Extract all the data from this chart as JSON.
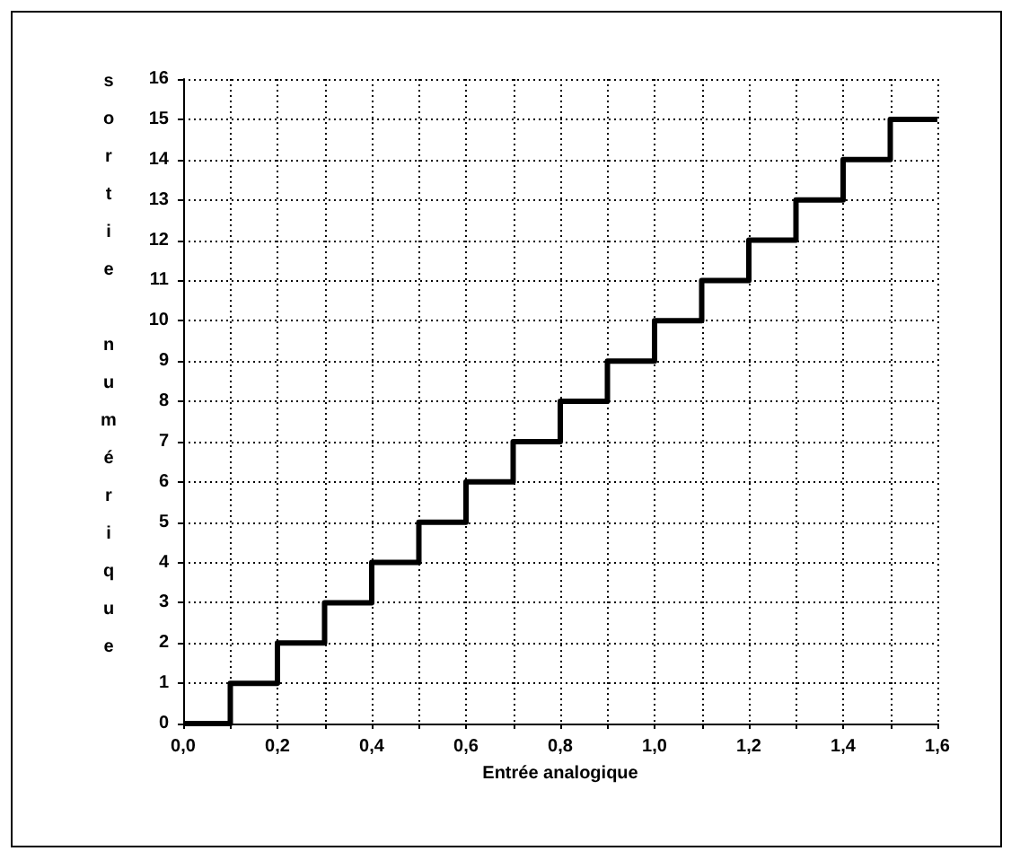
{
  "chart_data": {
    "type": "step",
    "xlabel": "Entrée analogique",
    "ylabel": "sortie numérique",
    "x": [
      0,
      0.1,
      0.2,
      0.3,
      0.4,
      0.5,
      0.6,
      0.7,
      0.8,
      0.9,
      1.0,
      1.1,
      1.2,
      1.3,
      1.4,
      1.5,
      1.6
    ],
    "values": [
      0,
      1,
      2,
      3,
      4,
      5,
      6,
      7,
      8,
      9,
      10,
      11,
      12,
      13,
      14,
      15,
      15
    ],
    "color": "#000000",
    "xlim": [
      0,
      1.6
    ],
    "xticks": [
      {
        "value": 0,
        "label": "0,0"
      },
      {
        "value": 0.1,
        "label": null
      },
      {
        "value": 0.2,
        "label": "0,2"
      },
      {
        "value": 0.3,
        "label": null
      },
      {
        "value": 0.4,
        "label": "0,4"
      },
      {
        "value": 0.5,
        "label": null
      },
      {
        "value": 0.6,
        "label": "0,6"
      },
      {
        "value": 0.7,
        "label": null
      },
      {
        "value": 0.8,
        "label": "0,8"
      },
      {
        "value": 0.9,
        "label": null
      },
      {
        "value": 1.0,
        "label": "1,0"
      },
      {
        "value": 1.1,
        "label": null
      },
      {
        "value": 1.2,
        "label": "1,2"
      },
      {
        "value": 1.3,
        "label": null
      },
      {
        "value": 1.4,
        "label": "1,4"
      },
      {
        "value": 1.5,
        "label": null
      },
      {
        "value": 1.6,
        "label": "1,6"
      }
    ],
    "ylim": [
      0,
      16
    ],
    "yticks": [
      0,
      1,
      2,
      3,
      4,
      5,
      6,
      7,
      8,
      9,
      10,
      11,
      12,
      13,
      14,
      15,
      16
    ],
    "grid": true,
    "marker": "none",
    "line_style": "solid"
  }
}
